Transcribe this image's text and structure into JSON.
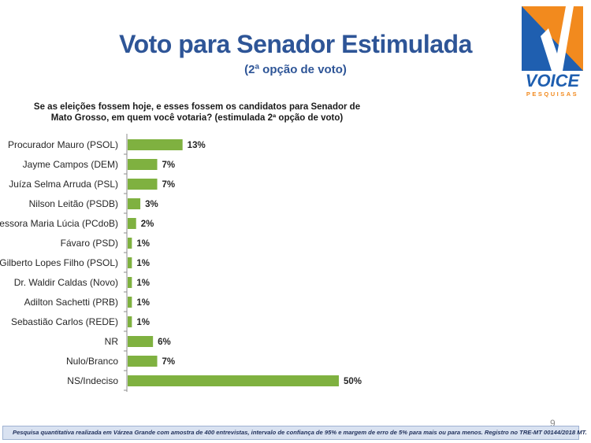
{
  "header": {
    "title": "Voto para Senador Estimulada",
    "subtitle": "(2ª opção de voto)"
  },
  "logo": {
    "name": "VOICE",
    "tagline": "PESQUISAS",
    "colors": {
      "blue": "#1f5fb0",
      "orange": "#f28a1e"
    }
  },
  "chart_data": {
    "type": "bar",
    "orientation": "horizontal",
    "title": "Se as eleições fossem hoje, e esses fossem os candidatos para Senador de Mato Grosso, em quem você votaria?  (estimulada 2ª opção de voto)",
    "title_lines": [
      "Se as eleições fossem hoje, e esses fossem os candidatos para Senador de",
      "Mato Grosso, em quem você votaria?  (estimulada 2ª opção de voto)"
    ],
    "categories": [
      "Procurador Mauro (PSOL)",
      "Jayme Campos (DEM)",
      "Juíza Selma Arruda (PSL)",
      "Nilson Leitão (PSDB)",
      "Professora Maria Lúcia (PCdoB)",
      "Fávaro (PSD)",
      "Gilberto Lopes Filho (PSOL)",
      "Dr. Waldir Caldas (Novo)",
      "Adilton Sachetti (PRB)",
      "Sebastião Carlos (REDE)",
      "NR",
      "Nulo/Branco",
      "NS/Indeciso"
    ],
    "values": [
      13,
      7,
      7,
      3,
      2,
      1,
      1,
      1,
      1,
      1,
      6,
      7,
      50
    ],
    "value_labels": [
      "13%",
      "7%",
      "7%",
      "3%",
      "2%",
      "1%",
      "1%",
      "1%",
      "1%",
      "1%",
      "6%",
      "7%",
      "50%"
    ],
    "unit": "%",
    "xlim": [
      0,
      50
    ],
    "grid": false,
    "bar_color": "#7fb140"
  },
  "footer": {
    "note": "Pesquisa quantitativa realizada em Várzea Grande com  amostra de 400 entrevistas, intervalo de confiança de 95% e margem de erro de 5% para mais ou para menos. Registro no TRE-MT  00144/2018 MT.",
    "page_number": "9"
  }
}
